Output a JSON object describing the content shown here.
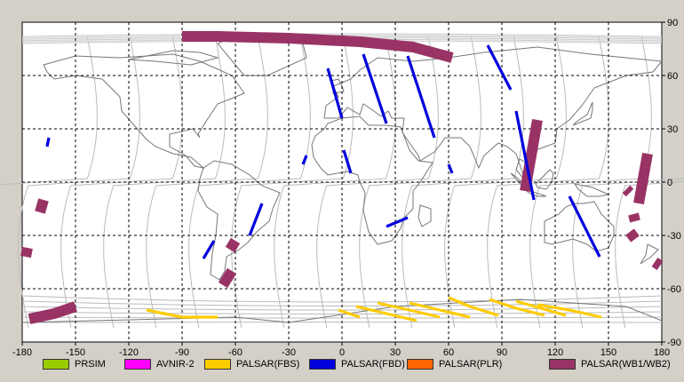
{
  "map": {
    "lon_ticks": [
      "-180",
      "-150",
      "-120",
      "-90",
      "-60",
      "-30",
      "0",
      "30",
      "60",
      "90",
      "120",
      "150",
      "180"
    ],
    "lat_ticks": [
      "90",
      "60",
      "30",
      "0",
      "-30",
      "-60",
      "-90"
    ],
    "lon_range": [
      -180,
      180
    ],
    "lat_range": [
      -90,
      90
    ],
    "grid": true,
    "colors": {
      "ocean": "#ffffff",
      "coast": "#777777",
      "orbit": "#bbbbbb",
      "grid": "#000000",
      "frame_bg": "#d4d0c8"
    }
  },
  "legend": [
    {
      "label": "PRSIM",
      "color": "#99cc00"
    },
    {
      "label": "AVNIR-2",
      "color": "#ff00ff"
    },
    {
      "label": "PALSAR(FBS)",
      "color": "#ffcc00"
    },
    {
      "label": "PALSAR(FBD)",
      "color": "#0000dd"
    },
    {
      "label": "PALSAR(PLR)",
      "color": "#ff6600"
    },
    {
      "label": "PALSAR(WB1/WB2)",
      "color": "#993366"
    }
  ],
  "chart_data": {
    "type": "map",
    "xlim": [
      -180,
      180
    ],
    "ylim": [
      -90,
      90
    ],
    "series": [
      {
        "name": "PALSAR(WB1/WB2)",
        "color": "#993366",
        "width_deg": 6,
        "segments": [
          [
            [
              -90,
              82
            ],
            [
              -70,
              82
            ],
            [
              -30,
              81
            ],
            [
              10,
              79
            ],
            [
              40,
              76
            ],
            [
              62,
              70
            ]
          ],
          [
            [
              -176,
              -77
            ],
            [
              -162,
              -74
            ],
            [
              -150,
              -70
            ]
          ],
          [
            [
              110,
              35
            ],
            [
              103,
              -5
            ]
          ],
          [
            [
              172,
              16
            ],
            [
              167,
              -12
            ]
          ],
          [
            [
              -168,
              -10
            ],
            [
              -170,
              -17
            ]
          ],
          [
            [
              -177,
              -37
            ],
            [
              -178,
              -42
            ]
          ],
          [
            [
              -60,
              -33
            ],
            [
              -63,
              -38
            ]
          ],
          [
            [
              -62,
              -50
            ],
            [
              -67,
              -58
            ]
          ],
          [
            [
              162,
              -28
            ],
            [
              165,
              -32
            ]
          ],
          [
            [
              164,
              -18
            ],
            [
              165,
              -22
            ]
          ],
          [
            [
              176,
              -45
            ],
            [
              179,
              -47
            ]
          ],
          [
            [
              160,
              -4
            ],
            [
              162,
              -6
            ]
          ]
        ]
      },
      {
        "name": "PALSAR(FBD)",
        "color": "#0000dd",
        "width_deg": 1.6,
        "segments": [
          [
            [
              -8,
              64
            ],
            [
              0,
              36
            ]
          ],
          [
            [
              12,
              72
            ],
            [
              25,
              33
            ]
          ],
          [
            [
              37,
              71
            ],
            [
              52,
              25
            ]
          ],
          [
            [
              82,
              77
            ],
            [
              95,
              52
            ]
          ],
          [
            [
              98,
              40
            ],
            [
              108,
              -10
            ]
          ],
          [
            [
              128,
              -8
            ],
            [
              145,
              -42
            ]
          ],
          [
            [
              25,
              -25
            ],
            [
              37,
              -20
            ]
          ],
          [
            [
              -45,
              -12
            ],
            [
              -52,
              -30
            ]
          ],
          [
            [
              -72,
              -33
            ],
            [
              -78,
              -43
            ]
          ],
          [
            [
              1,
              18
            ],
            [
              5,
              5
            ]
          ],
          [
            [
              -165,
              25
            ],
            [
              -166,
              20
            ]
          ],
          [
            [
              60,
              10
            ],
            [
              62,
              5
            ]
          ],
          [
            [
              -20,
              15
            ],
            [
              -22,
              10
            ]
          ]
        ]
      },
      {
        "name": "PALSAR(FBS)",
        "color": "#ffcc00",
        "width_deg": 1.6,
        "segments": [
          [
            [
              -110,
              -72
            ],
            [
              -90,
              -76
            ],
            [
              -70,
              -76
            ]
          ],
          [
            [
              8,
              -70
            ],
            [
              25,
              -74
            ],
            [
              42,
              -78
            ]
          ],
          [
            [
              20,
              -68
            ],
            [
              38,
              -72
            ],
            [
              55,
              -76
            ]
          ],
          [
            [
              38,
              -68
            ],
            [
              55,
              -72
            ],
            [
              72,
              -76
            ]
          ],
          [
            [
              60,
              -65
            ],
            [
              72,
              -70
            ],
            [
              88,
              -75
            ]
          ],
          [
            [
              83,
              -66
            ],
            [
              98,
              -71
            ],
            [
              114,
              -75
            ]
          ],
          [
            [
              98,
              -67
            ],
            [
              112,
              -71
            ],
            [
              126,
              -75
            ]
          ],
          [
            [
              110,
              -69
            ],
            [
              128,
              -72
            ],
            [
              146,
              -76
            ]
          ],
          [
            [
              -2,
              -72
            ],
            [
              10,
              -76
            ]
          ]
        ]
      }
    ]
  }
}
